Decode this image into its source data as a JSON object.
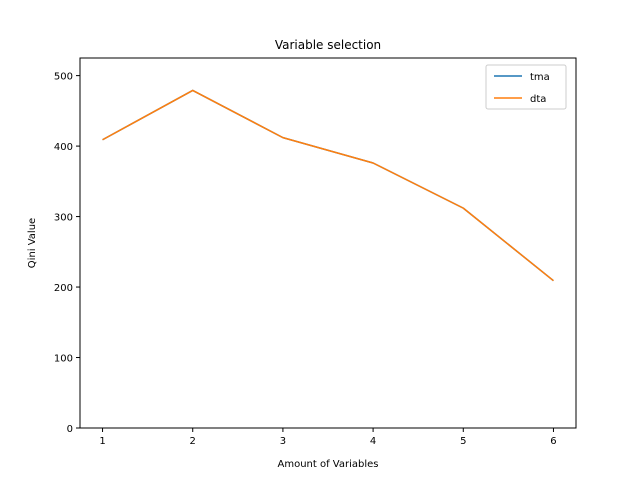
{
  "chart_data": {
    "type": "line",
    "title": "Variable selection",
    "xlabel": "Amount of Variables",
    "ylabel": "Qini Value",
    "x": [
      1,
      2,
      3,
      4,
      5,
      6
    ],
    "xlim": [
      0.75,
      6.25
    ],
    "ylim": [
      0,
      525
    ],
    "xticks": [
      1,
      2,
      3,
      4,
      5,
      6
    ],
    "yticks": [
      0,
      100,
      200,
      300,
      400,
      500
    ],
    "grid": false,
    "legend_position": "top-right",
    "series": [
      {
        "name": "tma",
        "color": "#1f77b4",
        "values": [
          409,
          479,
          412,
          376,
          312,
          209
        ]
      },
      {
        "name": "dta",
        "color": "#ff7f0e",
        "values": [
          409,
          479,
          412,
          376,
          312,
          209
        ]
      }
    ]
  }
}
